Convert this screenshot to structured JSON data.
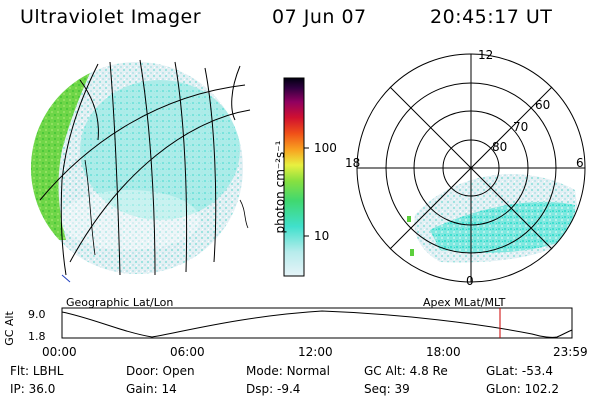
{
  "header": {
    "title": "Ultraviolet Imager",
    "date": "07 Jun 07",
    "time": "20:45:17 UT"
  },
  "colorbar": {
    "unit_label": "photon cm⁻²s⁻¹",
    "ticks": [
      "100",
      "10"
    ]
  },
  "polar": {
    "mlt_labels": {
      "top": "12",
      "left": "18",
      "right": "6",
      "bottom": "0"
    },
    "lat_labels": [
      "60",
      "70",
      "80"
    ]
  },
  "left_panel": {
    "caption": "Geographic Lat/Lon"
  },
  "right_panel": {
    "caption": "Apex MLat/MLT"
  },
  "timeline": {
    "ylabel": "GC Alt",
    "y_ticks": [
      "9.0",
      "1.8"
    ],
    "x_ticks": [
      "00:00",
      "06:00",
      "12:00",
      "18:00",
      "23:59"
    ],
    "marker_color": "#cc0000"
  },
  "info": {
    "row1": [
      {
        "label": "Flt:",
        "value": "LBHL"
      },
      {
        "label": "Door:",
        "value": "Open"
      },
      {
        "label": "Mode:",
        "value": "Normal"
      },
      {
        "label": "GC Alt:",
        "value": "4.8 Re"
      },
      {
        "label": "GLat:",
        "value": "-53.4"
      }
    ],
    "row2": [
      {
        "label": "IP:",
        "value": "36.0"
      },
      {
        "label": "Gain:",
        "value": "14"
      },
      {
        "label": "Dsp:",
        "value": "-9.4"
      },
      {
        "label": "Seq:",
        "value": "39"
      },
      {
        "label": "GLon:",
        "value": "102.2"
      }
    ]
  },
  "colors": {
    "dayglow_green": "#5ccf3c",
    "emission_cyan": "#3fe0d0",
    "background_speckle": "#d8ecf2"
  }
}
